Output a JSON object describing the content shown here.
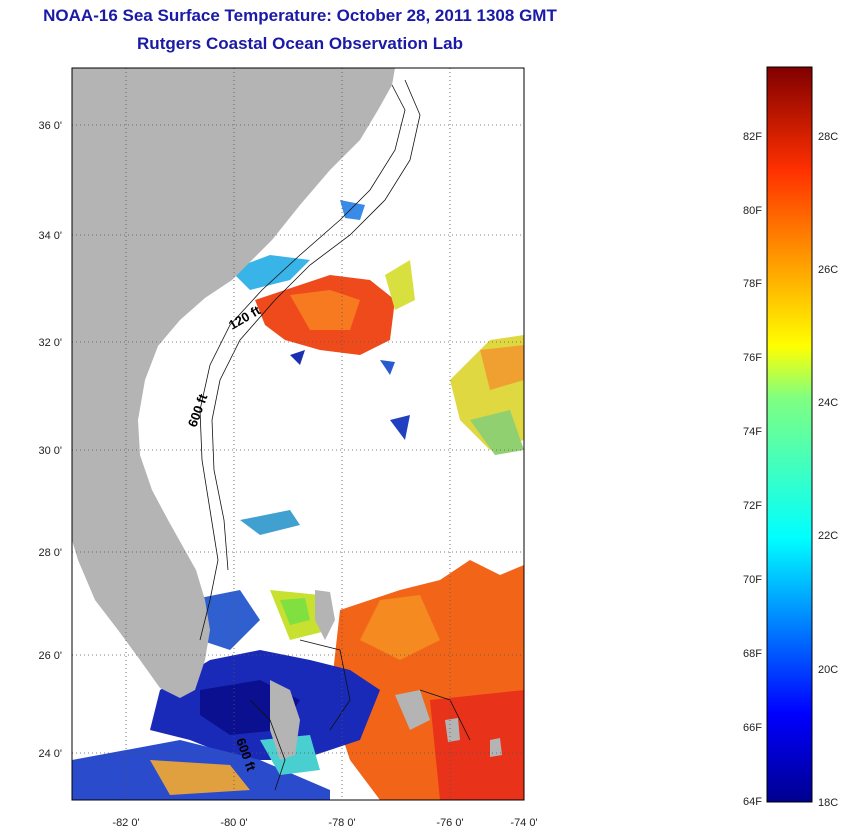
{
  "title": "NOAA-16 Sea Surface Temperature:  October 28, 2011 1308 GMT",
  "subtitle": "Rutgers Coastal Ocean Observation Lab",
  "map": {
    "lon_labels": [
      "-82 0'",
      "-80 0'",
      "-78 0'",
      "-76 0'",
      "-74 0'"
    ],
    "lat_labels": [
      "36 0'",
      "34 0'",
      "32 0'",
      "30 0'",
      "28 0'",
      "26 0'",
      "24 0'"
    ],
    "isobath_labels": [
      "120 ft",
      "600 ft",
      "600 ft"
    ],
    "land_color": "#b4b4b4"
  },
  "colorbar": {
    "f_labels": [
      "82F",
      "80F",
      "78F",
      "76F",
      "74F",
      "72F",
      "70F",
      "68F",
      "66F",
      "64F"
    ],
    "c_labels": [
      "28C",
      "26C",
      "24C",
      "22C",
      "20C",
      "18C"
    ]
  }
}
